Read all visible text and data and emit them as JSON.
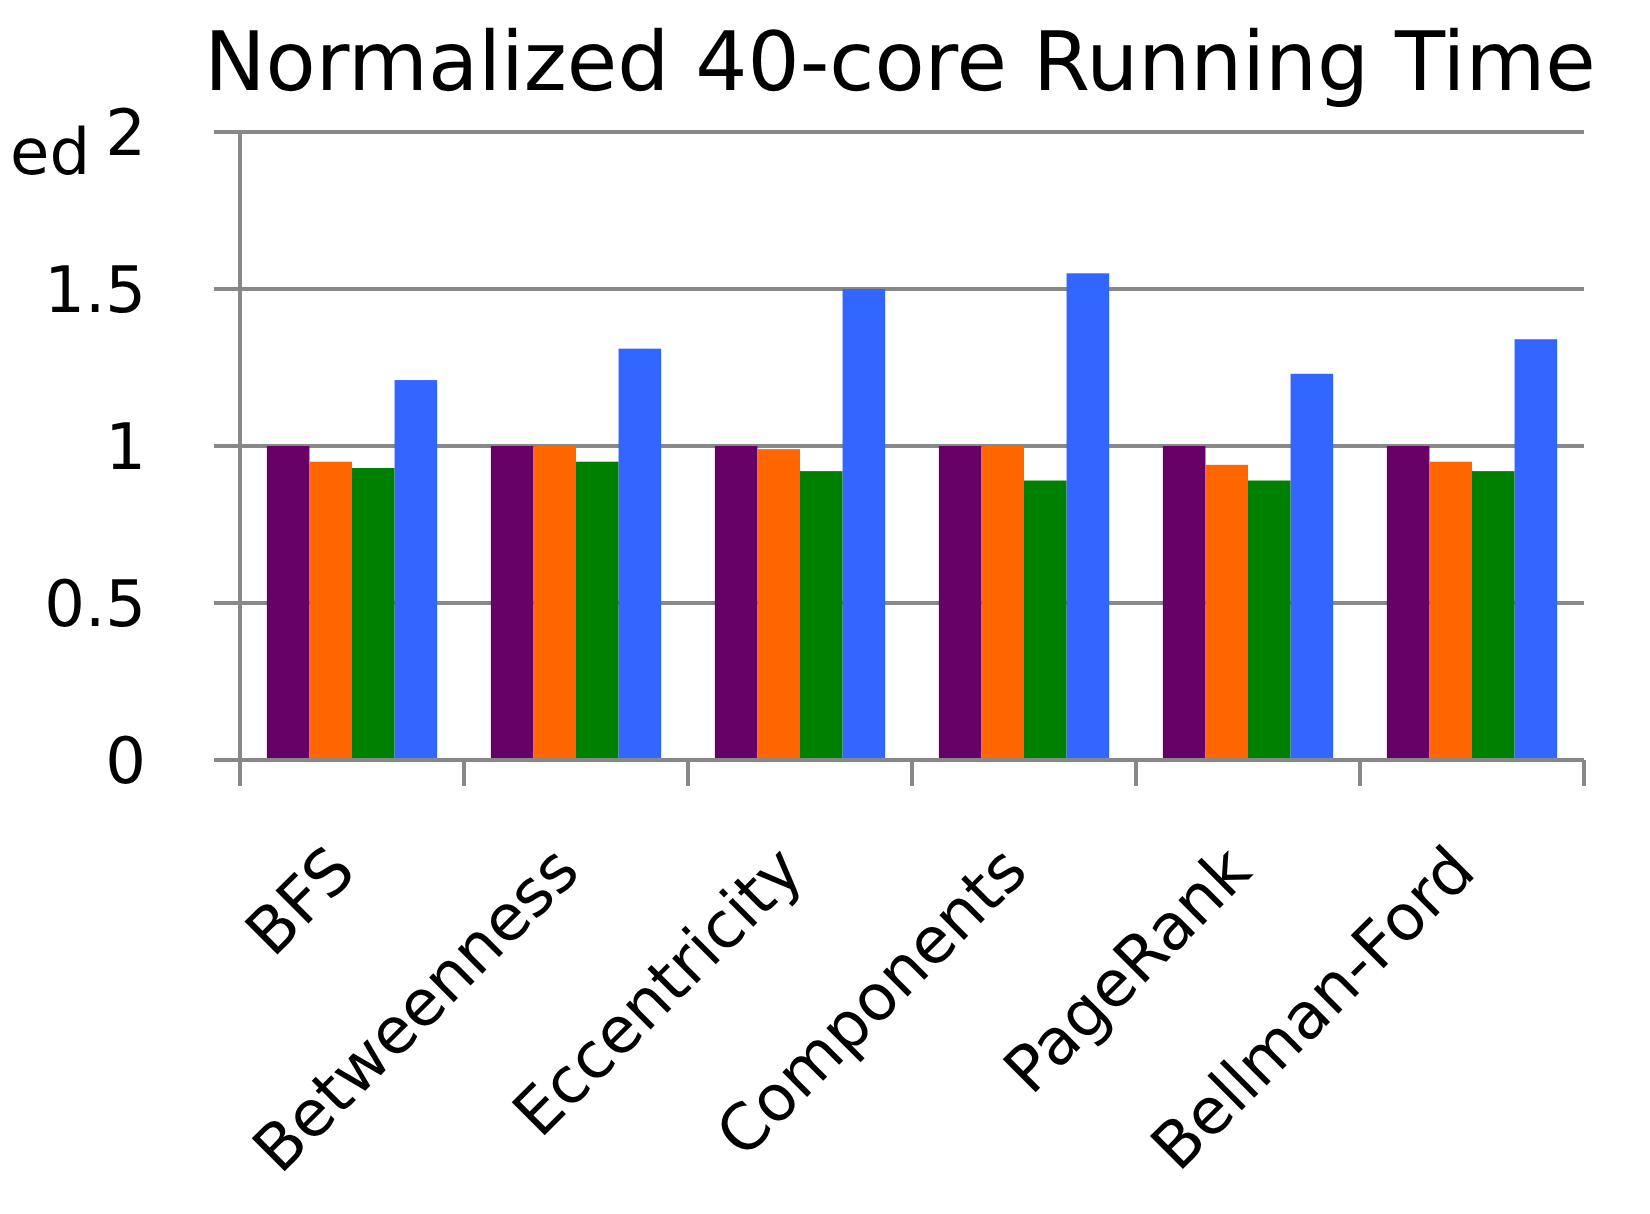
{
  "chart_data": {
    "type": "bar",
    "title": "Normalized 40-core Running Time",
    "ylabel": "ed",
    "categories": [
      "BFS",
      "Betweenness",
      "Eccentricity",
      "Components",
      "PageRank",
      "Bellman-Ford"
    ],
    "series": [
      {
        "color": "#660066",
        "values": [
          1,
          1,
          1,
          1,
          1,
          1
        ]
      },
      {
        "color": "#ff6600",
        "values": [
          0.95,
          1,
          0.99,
          1,
          0.94,
          0.95
        ]
      },
      {
        "color": "#008000",
        "values": [
          0.93,
          0.95,
          0.92,
          0.89,
          0.89,
          0.92
        ]
      },
      {
        "color": "#3366ff",
        "values": [
          1.21,
          1.31,
          1.5,
          1.55,
          1.23,
          1.34
        ]
      }
    ],
    "ylim": [
      0,
      2
    ],
    "yticks": [
      0,
      0.5,
      1,
      1.5,
      2
    ],
    "grid": "y"
  }
}
